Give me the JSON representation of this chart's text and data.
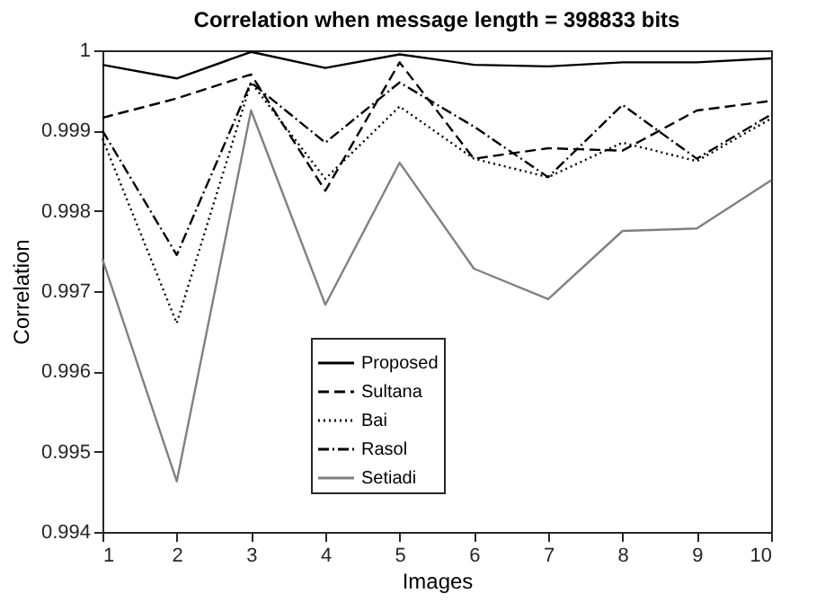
{
  "chart_data": {
    "type": "line",
    "title": "Correlation when message length = 398833 bits",
    "xlabel": "Images",
    "ylabel": "Correlation",
    "x": [
      1,
      2,
      3,
      4,
      5,
      6,
      7,
      8,
      9,
      10
    ],
    "xlim": [
      1,
      10
    ],
    "xticks": [
      1,
      2,
      3,
      4,
      5,
      6,
      7,
      8,
      9,
      10
    ],
    "ylim": [
      0.994,
      1
    ],
    "yticks": [
      0.994,
      0.995,
      0.996,
      0.997,
      0.998,
      0.999,
      1
    ],
    "grid": false,
    "legend": "bottom",
    "marker": "none",
    "series": [
      {
        "name": "Proposed",
        "color": "#000000",
        "line_style": "solid",
        "values": [
          0.99982,
          0.99965,
          0.99998,
          0.99978,
          0.99995,
          0.99982,
          0.9998,
          0.99985,
          0.99985,
          0.9999
        ]
      },
      {
        "name": "Sultana",
        "color": "#000000",
        "line_style": "dashed",
        "values": [
          0.99916,
          0.9994,
          0.9997,
          0.99825,
          0.99985,
          0.99865,
          0.99878,
          0.99875,
          0.99925,
          0.99937
        ]
      },
      {
        "name": "Bai",
        "color": "#000000",
        "line_style": "dotted",
        "values": [
          0.9989,
          0.9966,
          0.9996,
          0.9984,
          0.9993,
          0.99865,
          0.99842,
          0.99885,
          0.99862,
          0.99915
        ]
      },
      {
        "name": "Rasol",
        "color": "#000000",
        "line_style": "dashdot",
        "values": [
          0.999,
          0.99745,
          0.9996,
          0.99885,
          0.9996,
          0.99905,
          0.99842,
          0.99932,
          0.99865,
          0.9992
        ]
      },
      {
        "name": "Setiadi",
        "color": "#808080",
        "line_style": "solid",
        "values": [
          0.9974,
          0.99463,
          0.99925,
          0.99683,
          0.9986,
          0.99728,
          0.9969,
          0.99775,
          0.99778,
          0.99838
        ]
      }
    ]
  }
}
